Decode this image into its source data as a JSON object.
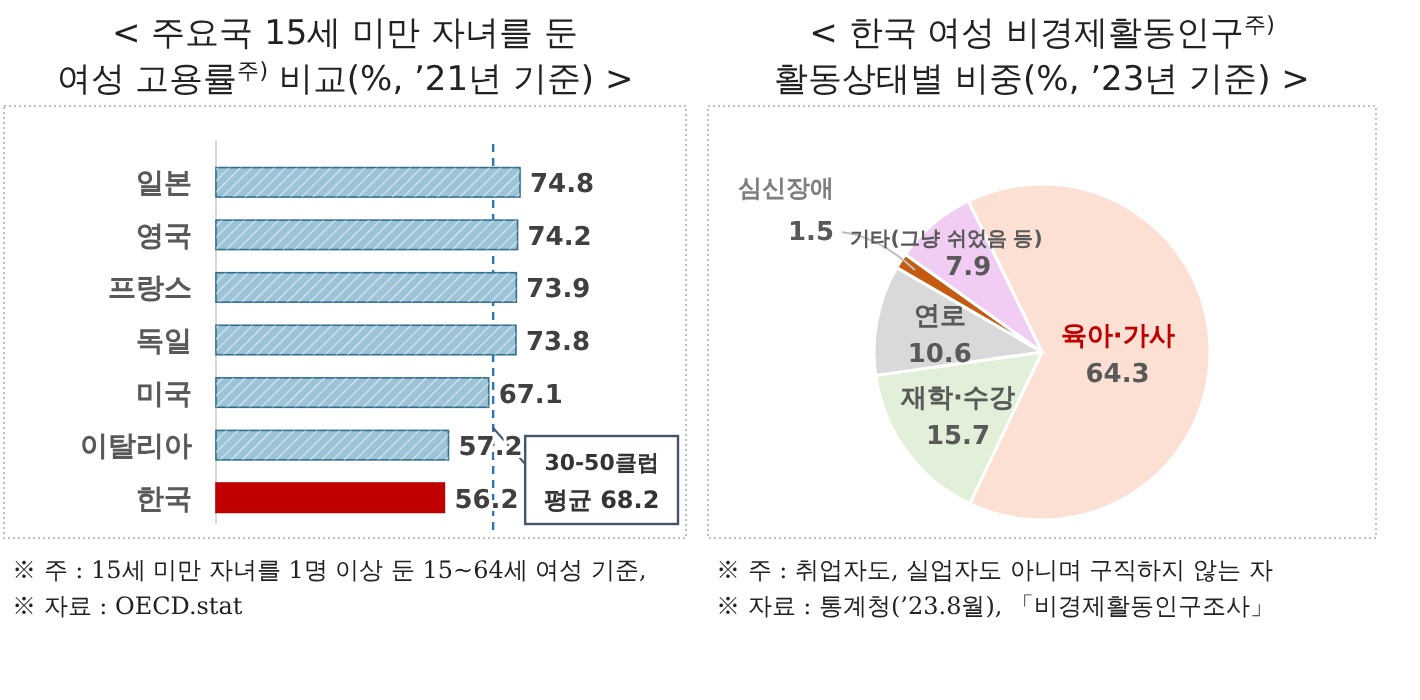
{
  "chart_data": [
    {
      "type": "bar",
      "orientation": "horizontal",
      "title": "< 주요국 15세 미만 자녀를 둔 여성 고용률$^{주)}$ 비교(%, ’21년 기준) >",
      "categories": [
        "일본",
        "영국",
        "프랑스",
        "독일",
        "미국",
        "이탈리아",
        "한국"
      ],
      "values": [
        74.8,
        74.2,
        73.9,
        73.8,
        67.1,
        57.2,
        56.2
      ],
      "colors": [
        "#9dc3d6",
        "#9dc3d6",
        "#9dc3d6",
        "#9dc3d6",
        "#9dc3d6",
        "#9dc3d6",
        "#c00000"
      ],
      "data_labels": true,
      "ref_lines": [
        {
          "axis": "x",
          "value": 68.2,
          "label": "30-50클럽 평균 68.2",
          "color": "#2e75b6",
          "line_style": "dashed"
        }
      ],
      "annotations": [
        "※ 주 : 15세 미만 자녀를 1명 이상 둔 15~64세 여성 기준,",
        "※ 자료 : OECD.stat"
      ]
    },
    {
      "type": "pie",
      "title": "< 한국 여성 비경제활동인구$^{주)}$ 활동상태별 비중(%, ’23년 기준) >",
      "categories": [
        "육아·가사",
        "재학·수강",
        "연로",
        "심신장애",
        "기타(그냥 쉬었음 등)"
      ],
      "values": [
        64.3,
        15.7,
        10.6,
        1.5,
        7.9
      ],
      "colors": [
        "#fbe0d3",
        "#e2f0d9",
        "#d9d9d9",
        "#c55a11",
        "#f2cdf3"
      ],
      "data_labels": true,
      "annotations": [
        "※ 주 : 취업자도, 실업자도 아니며 구직하지 않는 자",
        "※ 자료 : 통계청(’23.8월), 「비경제활동인구조사」"
      ]
    }
  ]
}
